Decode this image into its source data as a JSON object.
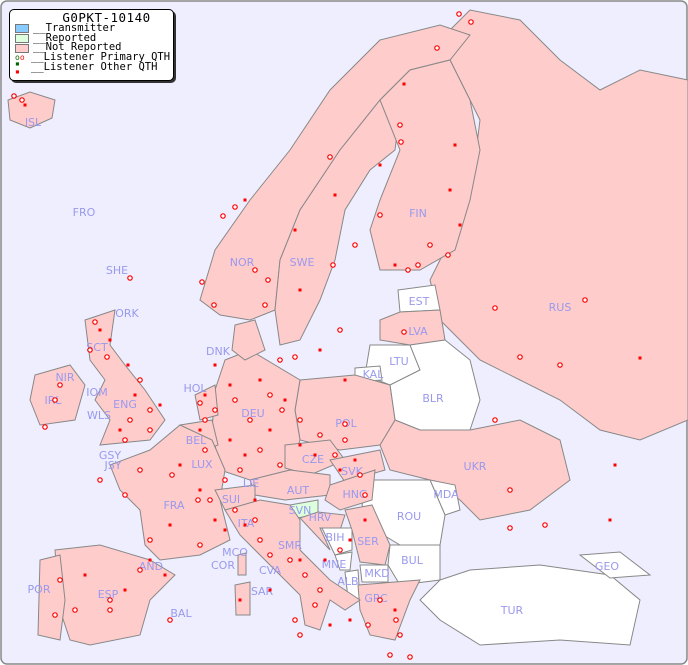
{
  "legend": {
    "title": "G0PKT-10140",
    "items": [
      {
        "label": "__Transmitter",
        "color": "#88ccff"
      },
      {
        "label": "__Reported",
        "color": "#ddffdd"
      },
      {
        "label": "__Not Reported",
        "color": "#ffcccc"
      },
      {
        "label": "__Listener Primary QTH",
        "symbol": "circle"
      },
      {
        "label": "__Listener Other QTH",
        "symbol": "square"
      }
    ]
  },
  "colors": {
    "sea": "#eeeeff",
    "not_reported": "#ffcccc",
    "reported": "#ddffdd",
    "no_data": "#ffffff",
    "marker": "#ff0000",
    "label": "#9999ee"
  },
  "countries": [
    "ISL",
    "FRO",
    "SHE",
    "ORK",
    "NOR",
    "SWE",
    "FIN",
    "RUS",
    "EST",
    "LVA",
    "LTU",
    "KAL",
    "BLR",
    "DNK",
    "HOL",
    "DEU",
    "POL",
    "IRL",
    "NIR",
    "SCT",
    "IOM",
    "WLS",
    "ENG",
    "GSY",
    "JSY",
    "BEL",
    "LUX",
    "FRA",
    "SUI",
    "LIE",
    "AUT",
    "CZE",
    "SVK",
    "HNG",
    "UKR",
    "MDA",
    "ROU",
    "SVN",
    "HRV",
    "BIH",
    "SER",
    "BUL",
    "MNE",
    "MKD",
    "ALB",
    "GRC",
    "TUR",
    "GEO",
    "ITA",
    "SMR",
    "MCO",
    "COR",
    "CVA",
    "SAR",
    "AND",
    "ESP",
    "POR",
    "BAL"
  ]
}
